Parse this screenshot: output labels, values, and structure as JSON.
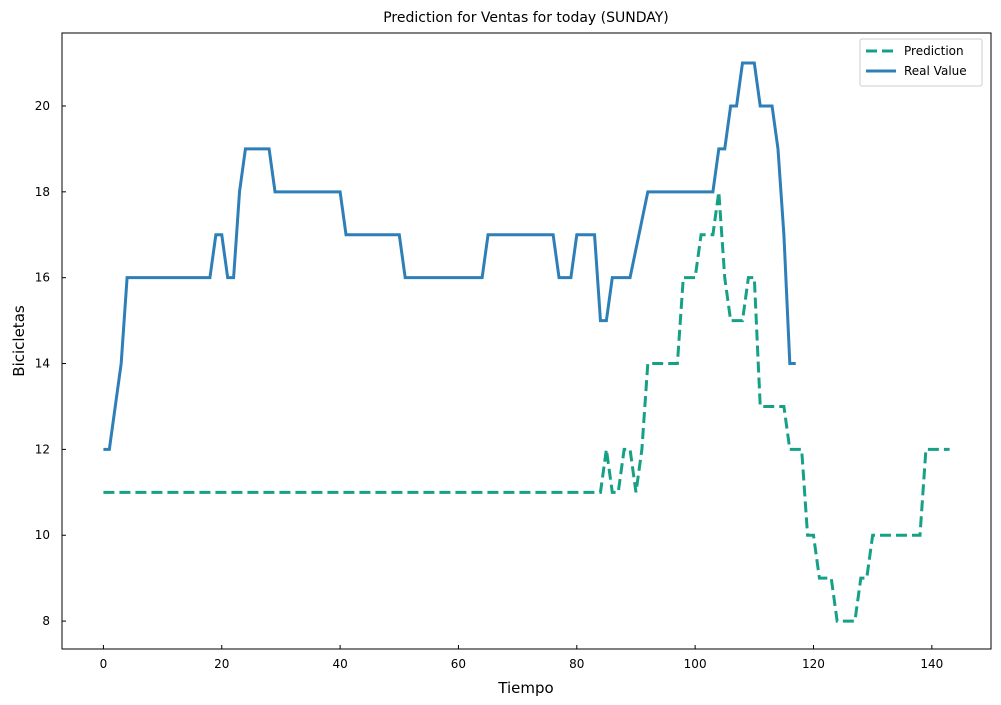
{
  "chart_data": {
    "type": "line",
    "title": "Prediction for Ventas for today (SUNDAY)",
    "xlabel": "Tiempo",
    "ylabel": "Bicicletas",
    "xlim": [
      -7,
      150
    ],
    "ylim": [
      7.35,
      21.7
    ],
    "xticks": [
      0,
      20,
      40,
      60,
      80,
      100,
      120,
      140
    ],
    "yticks": [
      8,
      10,
      12,
      14,
      16,
      18,
      20
    ],
    "grid": false,
    "legend": "top-right",
    "series": [
      {
        "name": "Prediction",
        "color": "#16a085",
        "dash": true,
        "points": [
          [
            0,
            11
          ],
          [
            84,
            11
          ],
          [
            85,
            12
          ],
          [
            86,
            11
          ],
          [
            87,
            11
          ],
          [
            88,
            12
          ],
          [
            89,
            12
          ],
          [
            90,
            11
          ],
          [
            91,
            12
          ],
          [
            92,
            14
          ],
          [
            97,
            14
          ],
          [
            98,
            16
          ],
          [
            100,
            16
          ],
          [
            101,
            17
          ],
          [
            103,
            17
          ],
          [
            104,
            18
          ],
          [
            105,
            16
          ],
          [
            106,
            15
          ],
          [
            108,
            15
          ],
          [
            109,
            16
          ],
          [
            110,
            16
          ],
          [
            111,
            13
          ],
          [
            114,
            13
          ],
          [
            115,
            13
          ],
          [
            116,
            12
          ],
          [
            117,
            12
          ],
          [
            118,
            12
          ],
          [
            119,
            10
          ],
          [
            120,
            10
          ],
          [
            121,
            9
          ],
          [
            123,
            9
          ],
          [
            124,
            8
          ],
          [
            127,
            8
          ],
          [
            128,
            9
          ],
          [
            129,
            9
          ],
          [
            130,
            10
          ],
          [
            138,
            10
          ],
          [
            139,
            12
          ],
          [
            143,
            12
          ]
        ]
      },
      {
        "name": "Real Value",
        "color": "#2e7fb8",
        "dash": false,
        "points": [
          [
            0,
            12
          ],
          [
            1,
            12
          ],
          [
            3,
            14
          ],
          [
            4,
            16
          ],
          [
            18,
            16
          ],
          [
            19,
            17
          ],
          [
            20,
            17
          ],
          [
            21,
            16
          ],
          [
            22,
            16
          ],
          [
            23,
            18
          ],
          [
            24,
            19
          ],
          [
            28,
            19
          ],
          [
            29,
            18
          ],
          [
            40,
            18
          ],
          [
            41,
            17
          ],
          [
            50,
            17
          ],
          [
            51,
            16
          ],
          [
            64,
            16
          ],
          [
            65,
            17
          ],
          [
            76,
            17
          ],
          [
            77,
            16
          ],
          [
            79,
            16
          ],
          [
            80,
            17
          ],
          [
            83,
            17
          ],
          [
            84,
            15
          ],
          [
            85,
            15
          ],
          [
            86,
            16
          ],
          [
            89,
            16
          ],
          [
            92,
            18
          ],
          [
            103,
            18
          ],
          [
            104,
            19
          ],
          [
            105,
            19
          ],
          [
            106,
            20
          ],
          [
            107,
            20
          ],
          [
            108,
            21
          ],
          [
            110,
            21
          ],
          [
            111,
            20
          ],
          [
            113,
            20
          ],
          [
            114,
            19
          ],
          [
            115,
            17
          ],
          [
            116,
            14
          ],
          [
            117,
            14
          ]
        ]
      }
    ]
  }
}
